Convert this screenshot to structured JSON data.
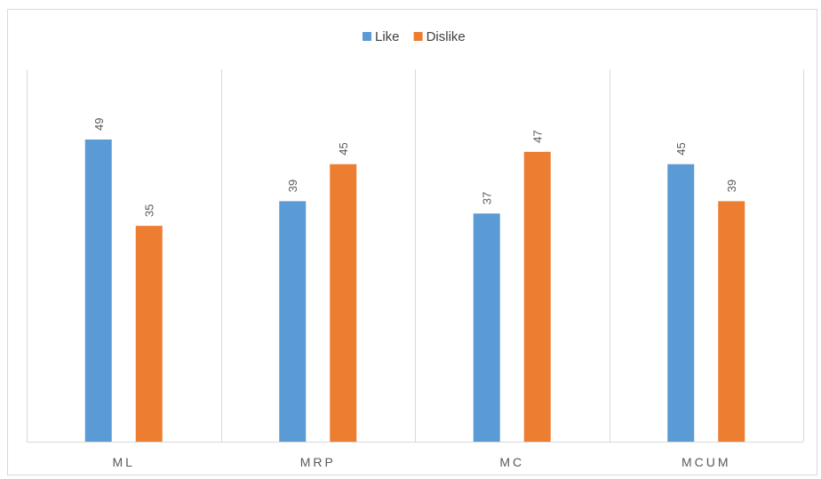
{
  "chart_data": {
    "type": "bar",
    "categories": [
      "ML",
      "MRP",
      "MC",
      "MCUM"
    ],
    "series": [
      {
        "name": "Like",
        "values": [
          49,
          39,
          37,
          45
        ],
        "color": "#5b9bd5"
      },
      {
        "name": "Dislike",
        "values": [
          35,
          45,
          47,
          39
        ],
        "color": "#ed7d31"
      }
    ],
    "ylim": [
      0,
      54
    ],
    "grid": false,
    "legend_position": "top",
    "data_labels": true,
    "data_label_rotation": "vertical"
  }
}
